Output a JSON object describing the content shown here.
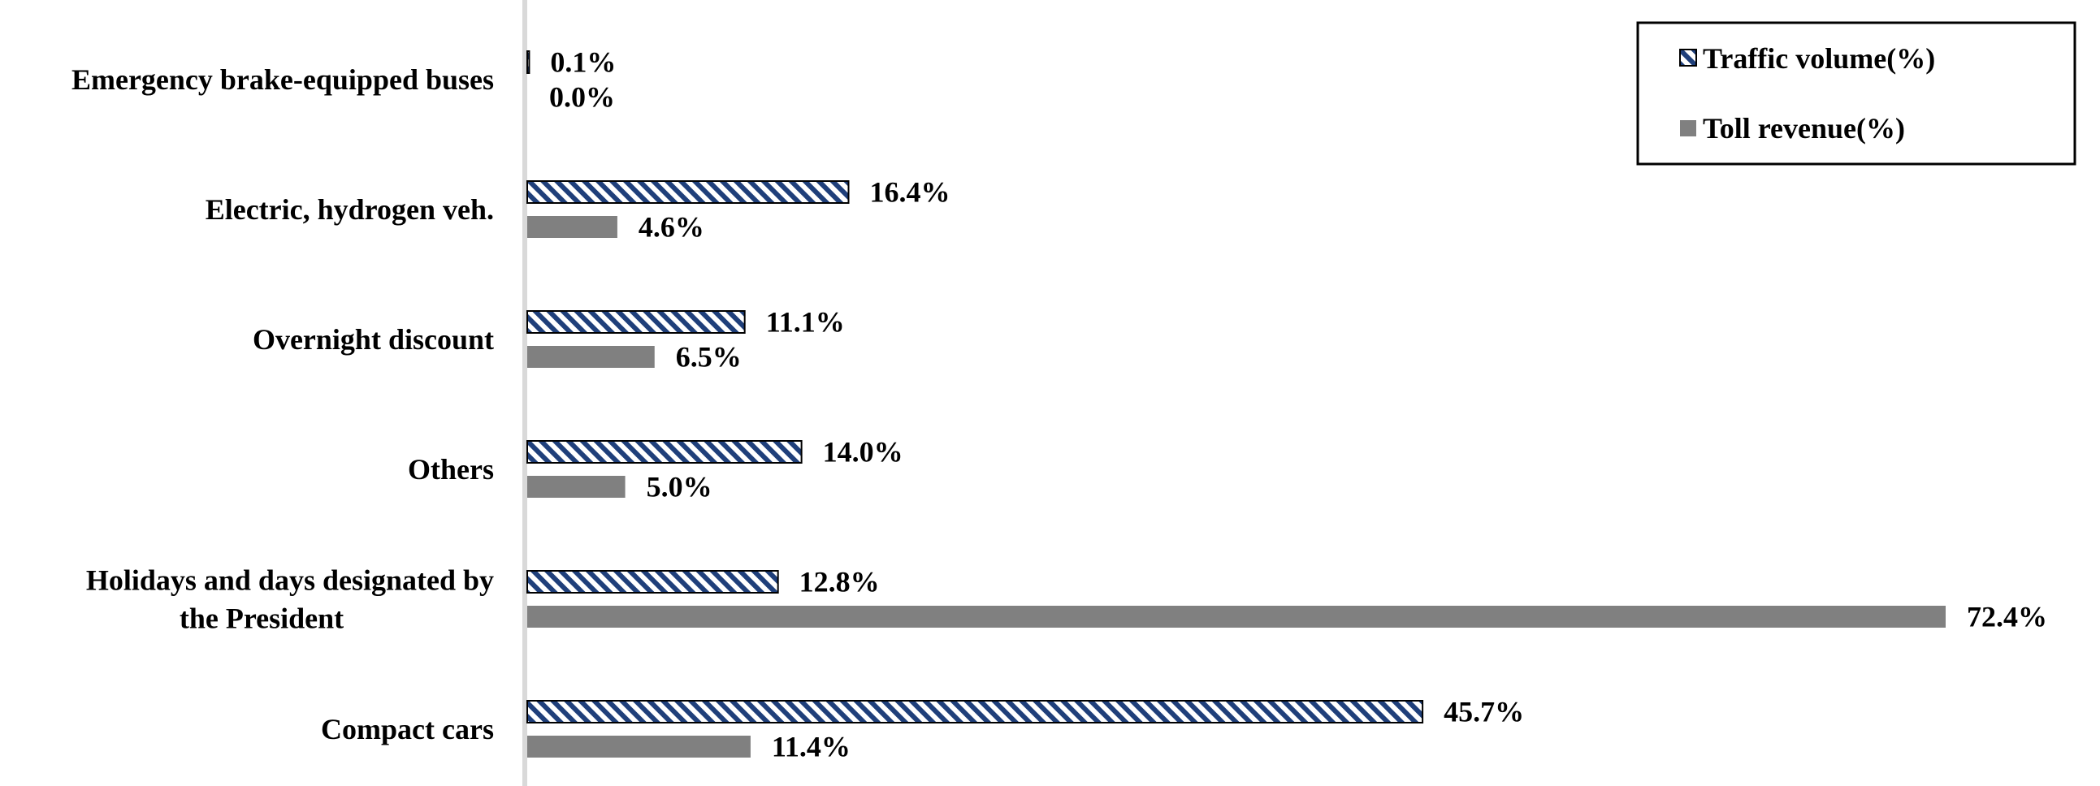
{
  "chart_data": {
    "type": "bar",
    "orientation": "horizontal",
    "categories": [
      [
        "Emergency brake-equipped buses"
      ],
      [
        "Electric, hydrogen veh."
      ],
      [
        "Overnight discount"
      ],
      [
        "Others"
      ],
      [
        "Holidays and days designated by",
        "the President"
      ],
      [
        "Compact cars"
      ]
    ],
    "series": [
      {
        "name": "Traffic volume(%)",
        "values": [
          0.1,
          16.4,
          11.1,
          14.0,
          12.8,
          45.7
        ],
        "labels": [
          "0.1%",
          "16.4%",
          "11.1%",
          "14.0%",
          "12.8%",
          "45.7%"
        ],
        "color": "#1f3f7a",
        "pattern": "diagonal-hatch"
      },
      {
        "name": "Toll revenue(%)",
        "values": [
          0.0,
          4.6,
          6.5,
          5.0,
          72.4,
          11.4
        ],
        "labels": [
          "0.0%",
          "4.6%",
          "6.5%",
          "5.0%",
          "72.4%",
          "11.4%"
        ],
        "color": "#808080",
        "pattern": "solid"
      }
    ],
    "xlim": [
      0,
      72.4
    ],
    "title": "",
    "xlabel": "",
    "ylabel": "",
    "grid": false,
    "legend": "top-right"
  }
}
